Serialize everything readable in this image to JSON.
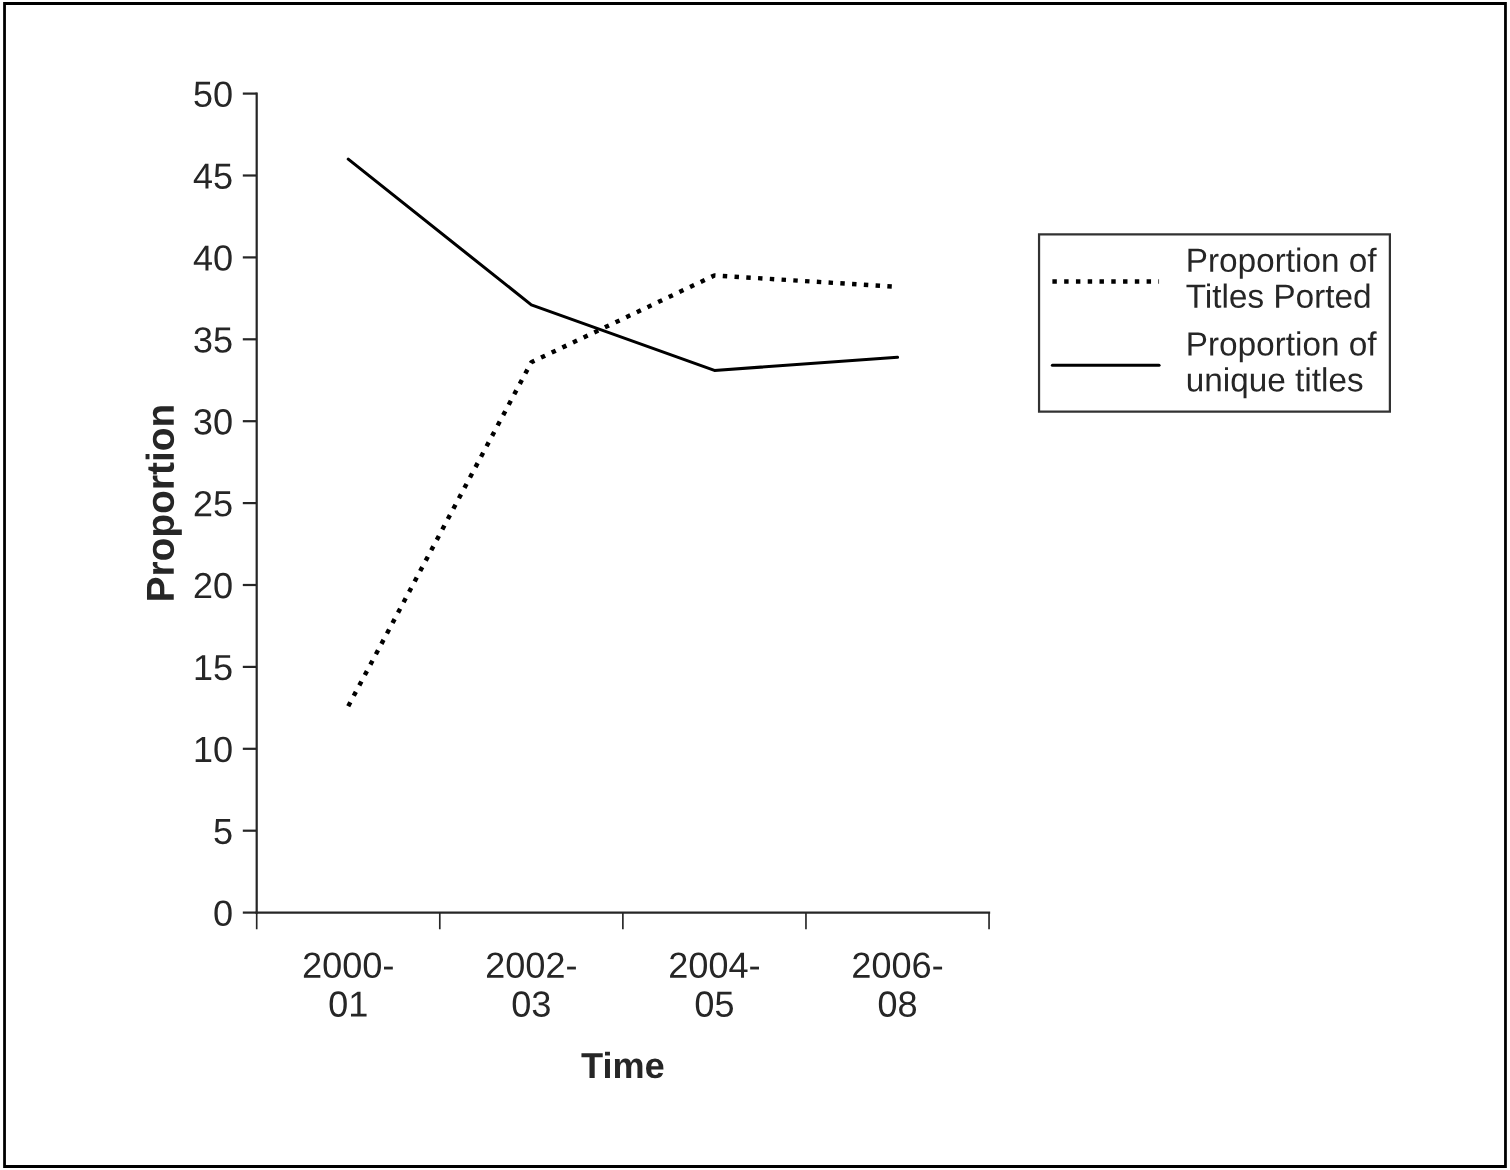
{
  "chart_data": {
    "type": "line",
    "xlabel": "Time",
    "ylabel": "Proportion",
    "categories": [
      "2000-\n01",
      "2002-\n03",
      "2004-\n05",
      "2006-\n08"
    ],
    "series": [
      {
        "name": "Proportion of\nTitles Ported",
        "color": "#000000",
        "line_style": "dotted",
        "values": [
          12.6,
          33.6,
          38.9,
          38.2
        ]
      },
      {
        "name": "Proportion of\nunique titles",
        "color": "#000000",
        "line_style": "solid",
        "values": [
          46.0,
          37.1,
          33.1,
          33.9
        ]
      }
    ],
    "ylim": [
      0,
      50
    ],
    "yticks": [
      0,
      5,
      10,
      15,
      20,
      25,
      30,
      35,
      40,
      45,
      50
    ],
    "grid": false,
    "legend": "right",
    "marker": "none"
  }
}
